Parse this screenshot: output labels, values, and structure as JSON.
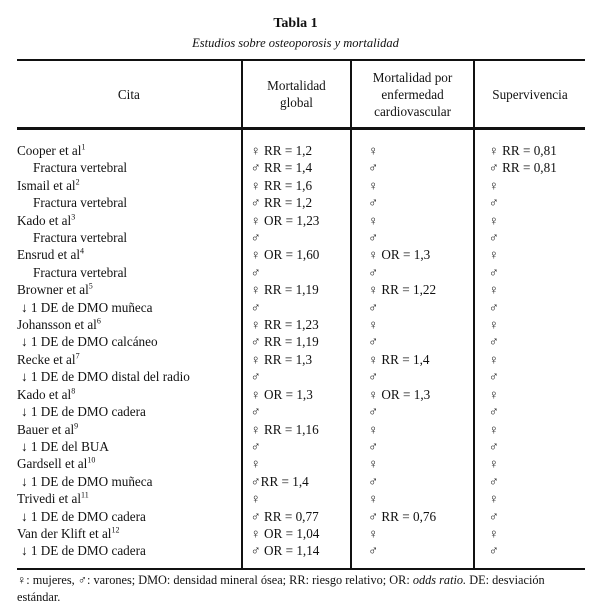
{
  "table": {
    "title": "Tabla 1",
    "subtitle": "Estudios sobre osteoporosis y mortalidad",
    "header": [
      "Cita",
      "Mortalidad global",
      "Mortalidad por enfermedad cardiovascular",
      "Supervivencia"
    ],
    "rows": [
      {
        "cita": "Cooper et al",
        "ref": "1",
        "cells": [
          "♀ RR = 1,2",
          "♀",
          "♀ RR = 0,81"
        ]
      },
      {
        "cita": "Fractura vertebral",
        "cells": [
          "♂ RR = 1,4",
          "♂",
          "♂ RR = 0,81"
        ]
      },
      {
        "cita": "Ismail et al",
        "ref": "2",
        "cells": [
          "♀ RR = 1,6",
          "♀",
          "♀"
        ]
      },
      {
        "cita": "Fractura vertebral",
        "cells": [
          "♂ RR = 1,2",
          "♂",
          "♂"
        ]
      },
      {
        "cita": "Kado et al",
        "ref": "3",
        "cells": [
          "♀ OR = 1,23",
          "♀",
          "♀"
        ]
      },
      {
        "cita": "Fractura vertebral",
        "cells": [
          "♂",
          "♂",
          "♂"
        ]
      },
      {
        "cita": "Ensrud et al",
        "ref": "4",
        "cells": [
          "♀ OR = 1,60",
          "♀ OR = 1,3",
          "♀"
        ]
      },
      {
        "cita": "Fractura vertebral",
        "cells": [
          "♂",
          "♂",
          "♂"
        ]
      },
      {
        "cita": "Browner et al",
        "ref": "5",
        "cells": [
          "♀ RR = 1,19",
          "♀ RR = 1,22",
          "♀"
        ]
      },
      {
        "cita": "↓ 1 DE de DMO muñeca",
        "cells": [
          "♂",
          "♂",
          "♂"
        ]
      },
      {
        "cita": "Johansson et al",
        "ref": "6",
        "cells": [
          "♀ RR = 1,23",
          "♀",
          "♀"
        ]
      },
      {
        "cita": "↓ 1 DE de DMO calcáneo",
        "cells": [
          "♂ RR = 1,19",
          "♂",
          "♂"
        ]
      },
      {
        "cita": "Recke et al",
        "ref": "7",
        "cells": [
          "♀ RR = 1,3",
          "♀ RR = 1,4",
          "♀"
        ]
      },
      {
        "cita": "↓ 1 DE de DMO distal del radio",
        "cells": [
          "♂",
          "♂",
          "♂"
        ]
      },
      {
        "cita": "Kado et al",
        "ref": "8",
        "cells": [
          "♀ OR = 1,3",
          "♀ OR = 1,3",
          "♀"
        ]
      },
      {
        "cita": "↓ 1 DE de DMO cadera",
        "cells": [
          "♂",
          "♂",
          "♂"
        ]
      },
      {
        "cita": "Bauer et al",
        "ref": "9",
        "cells": [
          "♀ RR = 1,16",
          "♀",
          "♀"
        ]
      },
      {
        "cita": "↓ 1 DE del BUA",
        "cells": [
          "♂",
          "♂",
          "♂"
        ]
      },
      {
        "cita": "Gardsell et al",
        "ref": "10",
        "cells": [
          "♀",
          "♀",
          "♀"
        ]
      },
      {
        "cita": "↓ 1 DE de DMO muñeca",
        "cells": [
          "♂RR = 1,4",
          "♂",
          "♂"
        ]
      },
      {
        "cita": "Trivedi et al",
        "ref": "11",
        "cells": [
          "♀",
          "♀",
          "♀"
        ]
      },
      {
        "cita": "↓ 1 DE de DMO cadera",
        "cells": [
          "♂ RR = 0,77",
          "♂ RR = 0,76",
          "♂"
        ]
      },
      {
        "cita": "Van der Klift et al",
        "ref": "12",
        "cells": [
          "♀ OR = 1,04",
          "♀",
          "♀"
        ]
      },
      {
        "cita": "↓ 1 DE de DMO cadera",
        "cells": [
          "♂ OR = 1,14",
          "♂",
          "♂"
        ]
      }
    ]
  },
  "footnote": [
    "♀: mujeres, ♂: varones; DMO: densidad mineral ósea; RR: riesgo relativo; OR: ",
    "odds ratio.",
    " DE: desviación estándar."
  ]
}
